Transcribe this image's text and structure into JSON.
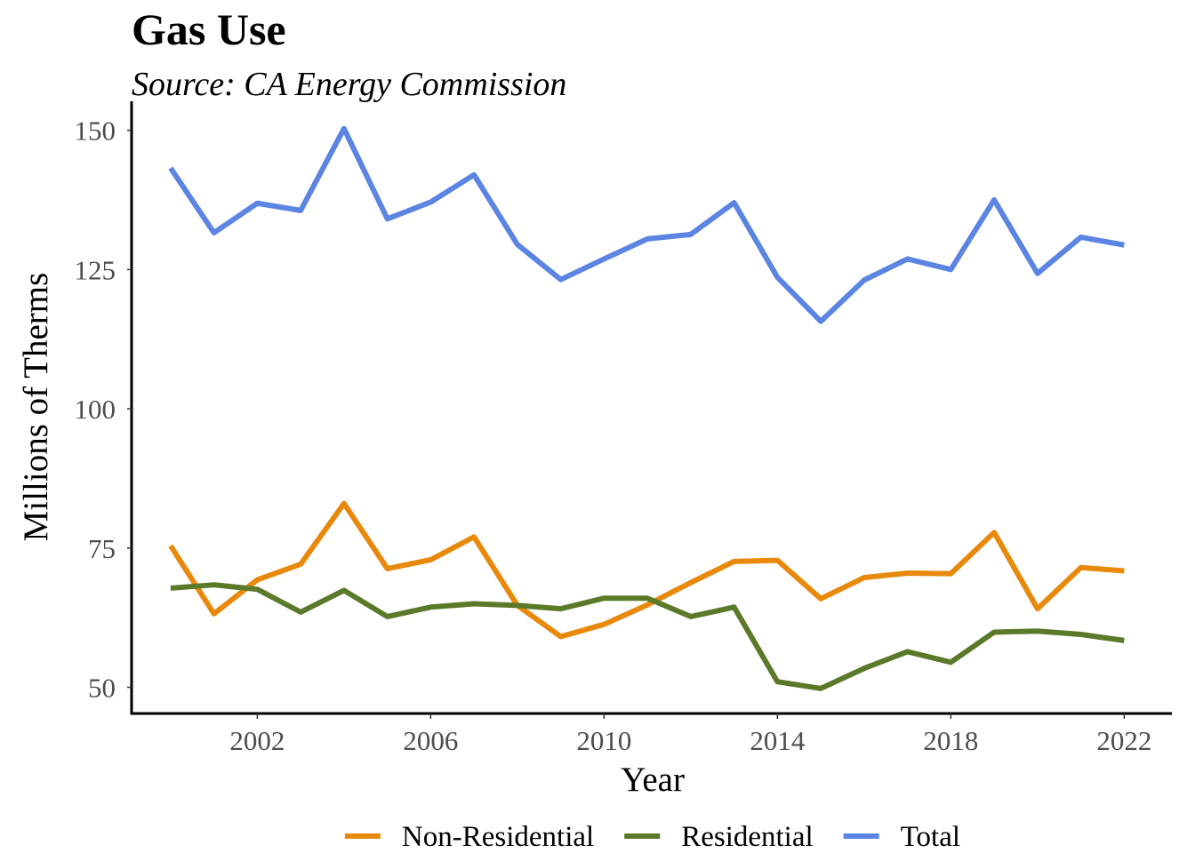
{
  "chart_data": {
    "type": "line",
    "title": "Gas Use",
    "subtitle": "Source: CA Energy Commission",
    "xlabel": "Year",
    "ylabel": "Millions of Therms",
    "x": [
      2000,
      2001,
      2002,
      2003,
      2004,
      2005,
      2006,
      2007,
      2008,
      2009,
      2010,
      2011,
      2012,
      2013,
      2014,
      2015,
      2016,
      2017,
      2018,
      2019,
      2020,
      2021,
      2022
    ],
    "x_ticks": [
      2002,
      2006,
      2010,
      2014,
      2018,
      2022
    ],
    "y_ticks": [
      50,
      75,
      100,
      125,
      150
    ],
    "xlim": [
      1999.1,
      2023.1
    ],
    "ylim": [
      45.3,
      155.2
    ],
    "grid": false,
    "legend_position": "bottom",
    "series": [
      {
        "name": "Non-Residential",
        "color": "#E8890C",
        "values": [
          75.4,
          63.2,
          69.3,
          72.1,
          83.0,
          71.3,
          72.9,
          77.0,
          64.7,
          59.1,
          61.3,
          64.8,
          68.8,
          72.6,
          72.8,
          65.9,
          69.7,
          70.5,
          70.4,
          77.8,
          64.1,
          71.5,
          70.9
        ]
      },
      {
        "name": "Residential",
        "color": "#5B7A29",
        "values": [
          67.8,
          68.4,
          67.6,
          63.5,
          67.4,
          62.7,
          64.4,
          65.0,
          64.7,
          64.1,
          66.0,
          66.0,
          62.7,
          64.4,
          51.0,
          49.8,
          53.4,
          56.4,
          54.5,
          59.9,
          60.1,
          59.5,
          58.4
        ]
      },
      {
        "name": "Total",
        "color": "#5B84E3",
        "values": [
          143.2,
          131.6,
          136.9,
          135.6,
          150.3,
          134.1,
          137.1,
          142.0,
          129.5,
          123.2,
          126.9,
          130.5,
          131.3,
          137.0,
          123.6,
          115.7,
          123.1,
          126.9,
          125.0,
          137.5,
          124.3,
          130.8,
          129.4
        ]
      }
    ]
  }
}
